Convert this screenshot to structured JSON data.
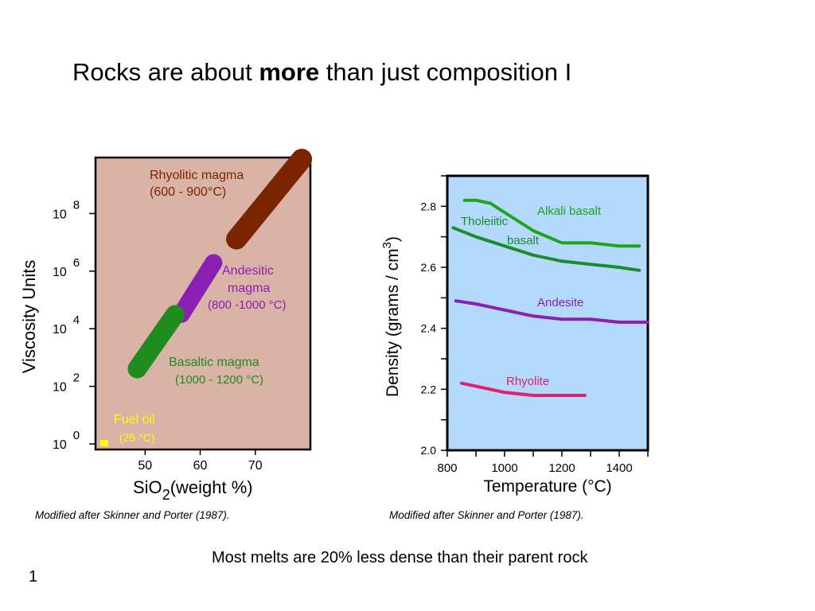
{
  "slide": {
    "title_pre": "Rocks are about ",
    "title_bold": "more",
    "title_post": " than just composition I",
    "caption": "Most melts are 20% less dense than their parent rock",
    "page_number": "1",
    "credit_left": "Modified after Skinner and Porter (1987).",
    "credit_right": "Modified after Skinner and Porter (1987)."
  },
  "colors": {
    "viscosity_bg": "#d9b3a6",
    "density_bg": "#b3d9fd",
    "rhyolitic": "#7a2400",
    "andesitic": "#8c1fb3",
    "basaltic": "#1f8c1f",
    "fuel_oil": "#ffff00",
    "green_line": "#1ea51e",
    "tholeiitic_line": "#1a8c2a",
    "andesite_line": "#8c1fb3",
    "rhyolite_line": "#e0206e"
  },
  "chart_data": [
    {
      "type": "scatter",
      "xlabel_main": "SiO",
      "xlabel_sub": "2",
      "xlabel_rest": "(weight %)",
      "ylabel": "Viscosity Units",
      "xlim": [
        41,
        80
      ],
      "ylim_log10": [
        0,
        10
      ],
      "x_ticks": [
        "50",
        "60",
        "70"
      ],
      "y_ticks": [
        {
          "base": "10",
          "exp": "0",
          "value": 0
        },
        {
          "base": "10",
          "exp": "2",
          "value": 2
        },
        {
          "base": "10",
          "exp": "4",
          "value": 4
        },
        {
          "base": "10",
          "exp": "6",
          "value": 6
        },
        {
          "base": "10",
          "exp": "8",
          "value": 8
        }
      ],
      "fields": [
        {
          "name": "Rhyolitic magma",
          "range": "(600 - 900°C)",
          "sio2": [
            66,
            79
          ],
          "log_viscosity": [
            7,
            10
          ]
        },
        {
          "name": "Andesitic",
          "name2": "magma",
          "range": "(800 -1000 °C)",
          "sio2": [
            56,
            63
          ],
          "log_viscosity": [
            4.4,
            6.4
          ]
        },
        {
          "name": "Basaltic magma",
          "range": "(1000 - 1200 °C)",
          "sio2": [
            48,
            56
          ],
          "log_viscosity": [
            2.5,
            4.6
          ]
        },
        {
          "name": "Fuel oil",
          "range": "(25 °C)",
          "sio2": [
            42,
            42
          ],
          "log_viscosity": [
            0,
            0
          ]
        }
      ]
    },
    {
      "type": "line",
      "xlabel": "Temperature (°C)",
      "ylabel_main": "Density (grams / cm",
      "ylabel_sup": "3",
      "ylabel_end": ")",
      "xlim": [
        800,
        1500
      ],
      "ylim": [
        2.0,
        2.9
      ],
      "x_ticks": [
        "800",
        "1000",
        "1200",
        "1400"
      ],
      "y_ticks": [
        "2.0",
        "2.2",
        "2.4",
        "2.6",
        "2.8"
      ],
      "series": [
        {
          "name": "Alkali  basalt",
          "x": [
            860,
            900,
            950,
            1000,
            1100,
            1200,
            1300,
            1400,
            1470
          ],
          "y": [
            2.82,
            2.82,
            2.81,
            2.78,
            2.72,
            2.68,
            2.68,
            2.67,
            2.67
          ]
        },
        {
          "name": "Tholeiitic",
          "name2": "basalt",
          "x": [
            820,
            900,
            1000,
            1100,
            1200,
            1300,
            1400,
            1470
          ],
          "y": [
            2.73,
            2.7,
            2.67,
            2.64,
            2.62,
            2.61,
            2.6,
            2.59
          ]
        },
        {
          "name": "Andesite",
          "x": [
            830,
            900,
            1000,
            1100,
            1200,
            1300,
            1400,
            1500
          ],
          "y": [
            2.49,
            2.48,
            2.46,
            2.44,
            2.43,
            2.43,
            2.42,
            2.42
          ]
        },
        {
          "name": "Rhyolite",
          "x": [
            850,
            900,
            1000,
            1100,
            1200,
            1280
          ],
          "y": [
            2.22,
            2.21,
            2.19,
            2.18,
            2.18,
            2.18
          ]
        }
      ]
    }
  ]
}
